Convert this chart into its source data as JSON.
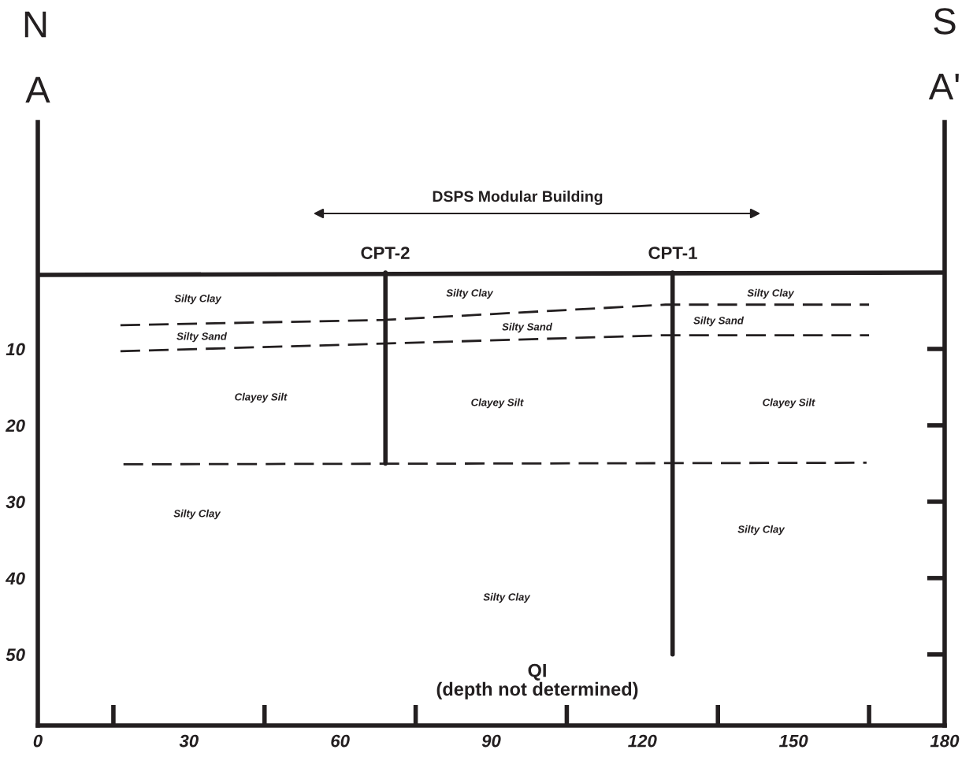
{
  "chart_data": {
    "type": "line",
    "series": [
      {
        "x": [
          0,
          180
        ],
        "values": [
          0.3,
          0
        ],
        "color": "#231f20",
        "line_style": "solid"
      },
      {
        "x": [
          69,
          69
        ],
        "values": [
          0,
          25
        ],
        "color": "#231f20",
        "line_style": "solid"
      },
      {
        "x": [
          126,
          126
        ],
        "values": [
          0,
          50
        ],
        "color": "#231f20",
        "line_style": "solid"
      },
      {
        "x": [
          16.4,
          68.7,
          124.6,
          165
        ],
        "values": [
          6.9,
          6.2,
          4.2,
          4.2
        ],
        "color": "#231f20",
        "line_style": "dashed"
      },
      {
        "x": [
          16.4,
          68.7,
          124.6,
          165
        ],
        "values": [
          10.3,
          9.3,
          8.2,
          8.2
        ],
        "color": "#231f20",
        "line_style": "dashed"
      },
      {
        "x": [
          17,
          164.5
        ],
        "values": [
          25.1,
          24.9
        ],
        "color": "#231f20",
        "line_style": "dashed"
      }
    ],
    "xlim": [
      0,
      180
    ],
    "ylim": [
      59.3,
      -19.7
    ],
    "xticks": [
      0,
      30,
      60,
      90,
      120,
      150,
      180
    ],
    "yticks": [
      10,
      20,
      30,
      40,
      50
    ],
    "annotations": [
      "N",
      "A",
      "S",
      "A'",
      "DSPS Modular Building",
      "CPT-2",
      "CPT-1",
      "Silty Clay",
      "Silty Sand",
      "Clayey Silt",
      "Silty Clay",
      "Silty Clay",
      "Silty Sand",
      "Clayey Silt",
      "Silty Clay",
      "Silty Clay",
      "Silty Sand",
      "Clayey Silt",
      "Silty Clay",
      "QI\n(depth not determined)"
    ]
  }
}
